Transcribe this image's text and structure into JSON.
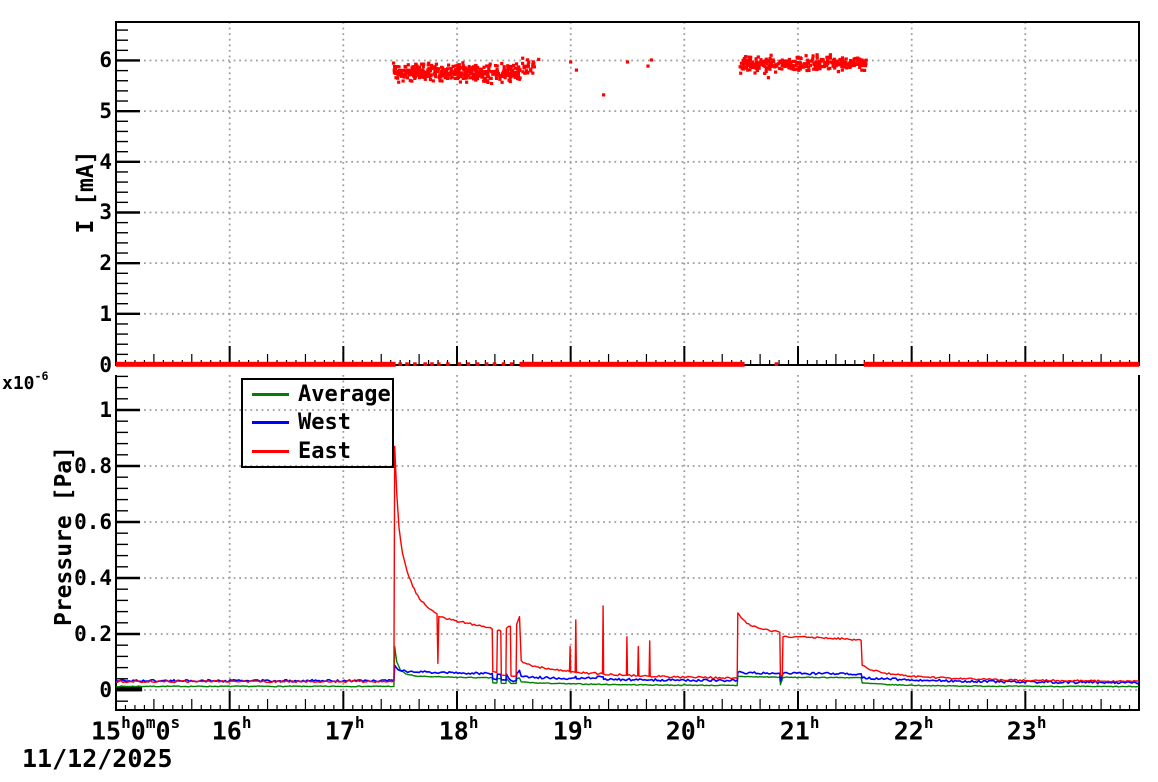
{
  "date_label": "11/12/2025",
  "scale_label": {
    "mantissa": "x10",
    "exponent": "-6"
  },
  "axis_titles": {
    "top_y": "I [mA]",
    "bottom_y": "Pressure [Pa]"
  },
  "legend": {
    "entries": [
      {
        "label": "Average",
        "color": "#008000"
      },
      {
        "label": "West",
        "color": "#0000ff"
      },
      {
        "label": "East",
        "color": "#ff0000"
      }
    ]
  },
  "colors": {
    "east": "#ff0000",
    "west": "#0000ff",
    "average": "#008000",
    "axis": "#000000",
    "grid": "#9e9e9e"
  },
  "x_axis": {
    "range_hours": [
      15,
      24
    ],
    "start_label": {
      "segments": [
        {
          "text": "15",
          "sup": "h"
        },
        {
          "text": "0",
          "sup": "m"
        },
        {
          "text": "0",
          "sup": "s"
        }
      ]
    },
    "hour_labels": [
      {
        "hour": 16,
        "text": "16",
        "sup": "h"
      },
      {
        "hour": 17,
        "text": "17",
        "sup": "h"
      },
      {
        "hour": 18,
        "text": "18",
        "sup": "h"
      },
      {
        "hour": 19,
        "text": "19",
        "sup": "h"
      },
      {
        "hour": 20,
        "text": "20",
        "sup": "h"
      },
      {
        "hour": 21,
        "text": "21",
        "sup": "h"
      },
      {
        "hour": 22,
        "text": "22",
        "sup": "h"
      },
      {
        "hour": 23,
        "text": "23",
        "sup": "h"
      }
    ]
  },
  "chart_data": [
    {
      "type": "scatter",
      "title": "Beam current vs time",
      "ylabel": "I [mA]",
      "ylim": [
        0,
        6.76
      ],
      "y_major_ticks": [
        0,
        1,
        2,
        3,
        4,
        5,
        6
      ],
      "y_tick_labels": [
        "0",
        "1",
        "2",
        "3",
        "4",
        "5",
        "6"
      ],
      "y_minor_step": 0.2,
      "grid": true,
      "marker": {
        "color": "#ff0000",
        "size": 3.2
      },
      "beam_on_clusters_mA": [
        {
          "t_start": 17.44,
          "t_end": 18.56,
          "mean": 5.76,
          "spread": 0.24,
          "count": 430
        },
        {
          "t_start": 18.56,
          "t_end": 18.72,
          "mean": 5.88,
          "spread": 0.2,
          "count": 26
        },
        {
          "t_start": 20.49,
          "t_end": 21.6,
          "mean": 5.93,
          "spread": 0.22,
          "count": 330
        }
      ],
      "isolated_points_mA": [
        [
          19.0,
          5.97
        ],
        [
          19.05,
          5.81
        ],
        [
          19.29,
          5.32
        ],
        [
          19.5,
          5.97
        ],
        [
          19.68,
          5.89
        ],
        [
          19.71,
          6.01
        ],
        [
          20.74,
          5.66
        ]
      ],
      "zero_line_segments_hours": [
        [
          15.0,
          17.46
        ],
        [
          18.55,
          20.53
        ],
        [
          21.58,
          24.0
        ]
      ],
      "zero_dots_hours": [
        17.5,
        17.56,
        17.63,
        17.72,
        17.78,
        17.84,
        17.92,
        18.02,
        18.1,
        18.18,
        18.26,
        18.33,
        18.41,
        18.48,
        20.5,
        20.81
      ],
      "seed": 42
    },
    {
      "type": "line",
      "title": "Vacuum pressure vs time",
      "ylabel": "Pressure [Pa]",
      "y_unit_multiplier": "1e-6",
      "ylim": [
        -0.071,
        1.125
      ],
      "y_major_ticks": [
        0,
        0.2,
        0.4,
        0.6,
        0.8,
        1
      ],
      "y_tick_labels": [
        "0",
        "0.2",
        "0.4",
        "0.6",
        "0.8",
        "1"
      ],
      "y_minor_step": 0.04,
      "grid": true,
      "legend_position": "top-left",
      "black_mark_segment": {
        "t_start": 15.0,
        "t_end": 15.23,
        "value": 0.004
      },
      "seed": 7,
      "series": [
        {
          "name": "Average",
          "color": "#008000",
          "noise": 0.0015,
          "width": 1.4,
          "points": [
            [
              15.0,
              0.013
            ],
            [
              17.445,
              0.013
            ],
            [
              17.452,
              0.155
            ],
            [
              17.47,
              0.1
            ],
            [
              17.5,
              0.072
            ],
            [
              17.55,
              0.057
            ],
            [
              17.65,
              0.049
            ],
            [
              17.9,
              0.046
            ],
            [
              18.2,
              0.044
            ],
            [
              18.31,
              0.043
            ],
            [
              18.315,
              0.026
            ],
            [
              18.35,
              0.025
            ],
            [
              18.355,
              0.041
            ],
            [
              18.385,
              0.04
            ],
            [
              18.39,
              0.024
            ],
            [
              18.43,
              0.024
            ],
            [
              18.435,
              0.041
            ],
            [
              18.475,
              0.023
            ],
            [
              18.52,
              0.023
            ],
            [
              18.525,
              0.041
            ],
            [
              18.55,
              0.043
            ],
            [
              18.565,
              0.029
            ],
            [
              18.7,
              0.025
            ],
            [
              19.0,
              0.022
            ],
            [
              19.3,
              0.02
            ],
            [
              19.7,
              0.018
            ],
            [
              20.1,
              0.017
            ],
            [
              20.465,
              0.016
            ],
            [
              20.47,
              0.049
            ],
            [
              20.6,
              0.047
            ],
            [
              20.84,
              0.046
            ],
            [
              20.845,
              0.019
            ],
            [
              20.868,
              0.045
            ],
            [
              21.2,
              0.045
            ],
            [
              21.555,
              0.044
            ],
            [
              21.565,
              0.025
            ],
            [
              21.8,
              0.019
            ],
            [
              22.2,
              0.015
            ],
            [
              23.0,
              0.013
            ],
            [
              24.0,
              0.012
            ]
          ]
        },
        {
          "name": "West",
          "color": "#0000ff",
          "noise": 0.004,
          "width": 1.6,
          "points": [
            [
              15.0,
              0.033
            ],
            [
              17.445,
              0.033
            ],
            [
              17.452,
              0.088
            ],
            [
              17.48,
              0.073
            ],
            [
              17.55,
              0.067
            ],
            [
              17.7,
              0.064
            ],
            [
              17.9,
              0.062
            ],
            [
              18.1,
              0.06
            ],
            [
              18.31,
              0.059
            ],
            [
              18.315,
              0.04
            ],
            [
              18.35,
              0.037
            ],
            [
              18.355,
              0.057
            ],
            [
              18.385,
              0.056
            ],
            [
              18.39,
              0.036
            ],
            [
              18.43,
              0.035
            ],
            [
              18.435,
              0.057
            ],
            [
              18.475,
              0.034
            ],
            [
              18.52,
              0.034
            ],
            [
              18.525,
              0.058
            ],
            [
              18.55,
              0.07
            ],
            [
              18.565,
              0.049
            ],
            [
              18.7,
              0.045
            ],
            [
              19.0,
              0.041
            ],
            [
              19.045,
              0.049
            ],
            [
              19.05,
              0.04
            ],
            [
              19.285,
              0.047
            ],
            [
              19.29,
              0.038
            ],
            [
              19.5,
              0.037
            ],
            [
              19.7,
              0.036
            ],
            [
              20.0,
              0.035
            ],
            [
              20.465,
              0.034
            ],
            [
              20.47,
              0.063
            ],
            [
              20.6,
              0.061
            ],
            [
              20.84,
              0.06
            ],
            [
              20.845,
              0.032
            ],
            [
              20.868,
              0.059
            ],
            [
              21.2,
              0.059
            ],
            [
              21.555,
              0.058
            ],
            [
              21.565,
              0.043
            ],
            [
              21.8,
              0.039
            ],
            [
              22.2,
              0.034
            ],
            [
              22.8,
              0.029
            ],
            [
              23.5,
              0.027
            ],
            [
              24.0,
              0.026
            ]
          ]
        },
        {
          "name": "East",
          "color": "#ff0000",
          "noise": 0.0035,
          "width": 1.4,
          "points": [
            [
              15.0,
              0.03
            ],
            [
              17.4,
              0.03
            ],
            [
              17.445,
              0.032
            ],
            [
              17.452,
              0.87
            ],
            [
              17.47,
              0.7
            ],
            [
              17.49,
              0.58
            ],
            [
              17.52,
              0.49
            ],
            [
              17.56,
              0.425
            ],
            [
              17.61,
              0.37
            ],
            [
              17.67,
              0.325
            ],
            [
              17.74,
              0.296
            ],
            [
              17.8,
              0.278
            ],
            [
              17.824,
              0.272
            ],
            [
              17.832,
              0.095
            ],
            [
              17.84,
              0.262
            ],
            [
              17.95,
              0.25
            ],
            [
              18.1,
              0.238
            ],
            [
              18.25,
              0.224
            ],
            [
              18.31,
              0.218
            ],
            [
              18.315,
              0.065
            ],
            [
              18.35,
              0.062
            ],
            [
              18.355,
              0.212
            ],
            [
              18.385,
              0.21
            ],
            [
              18.39,
              0.055
            ],
            [
              18.43,
              0.052
            ],
            [
              18.435,
              0.22
            ],
            [
              18.47,
              0.228
            ],
            [
              18.475,
              0.05
            ],
            [
              18.52,
              0.05
            ],
            [
              18.525,
              0.235
            ],
            [
              18.55,
              0.262
            ],
            [
              18.565,
              0.105
            ],
            [
              18.6,
              0.096
            ],
            [
              18.7,
              0.083
            ],
            [
              18.85,
              0.073
            ],
            [
              18.99,
              0.066
            ],
            [
              18.995,
              0.155
            ],
            [
              19.0,
              0.064
            ],
            [
              19.04,
              0.063
            ],
            [
              19.045,
              0.25
            ],
            [
              19.05,
              0.062
            ],
            [
              19.28,
              0.058
            ],
            [
              19.285,
              0.3
            ],
            [
              19.29,
              0.057
            ],
            [
              19.49,
              0.053
            ],
            [
              19.495,
              0.19
            ],
            [
              19.5,
              0.052
            ],
            [
              19.59,
              0.051
            ],
            [
              19.595,
              0.155
            ],
            [
              19.6,
              0.05
            ],
            [
              19.69,
              0.049
            ],
            [
              19.695,
              0.175
            ],
            [
              19.7,
              0.049
            ],
            [
              20.0,
              0.046
            ],
            [
              20.4,
              0.043
            ],
            [
              20.465,
              0.043
            ],
            [
              20.47,
              0.275
            ],
            [
              20.5,
              0.258
            ],
            [
              20.55,
              0.237
            ],
            [
              20.65,
              0.221
            ],
            [
              20.75,
              0.212
            ],
            [
              20.84,
              0.206
            ],
            [
              20.845,
              0.052
            ],
            [
              20.862,
              0.05
            ],
            [
              20.868,
              0.19
            ],
            [
              21.0,
              0.19
            ],
            [
              21.2,
              0.187
            ],
            [
              21.4,
              0.183
            ],
            [
              21.555,
              0.178
            ],
            [
              21.565,
              0.088
            ],
            [
              21.65,
              0.071
            ],
            [
              21.75,
              0.061
            ],
            [
              21.9,
              0.053
            ],
            [
              22.1,
              0.046
            ],
            [
              22.4,
              0.041
            ],
            [
              22.8,
              0.036
            ],
            [
              23.4,
              0.033
            ],
            [
              24.0,
              0.031
            ]
          ]
        }
      ]
    }
  ]
}
